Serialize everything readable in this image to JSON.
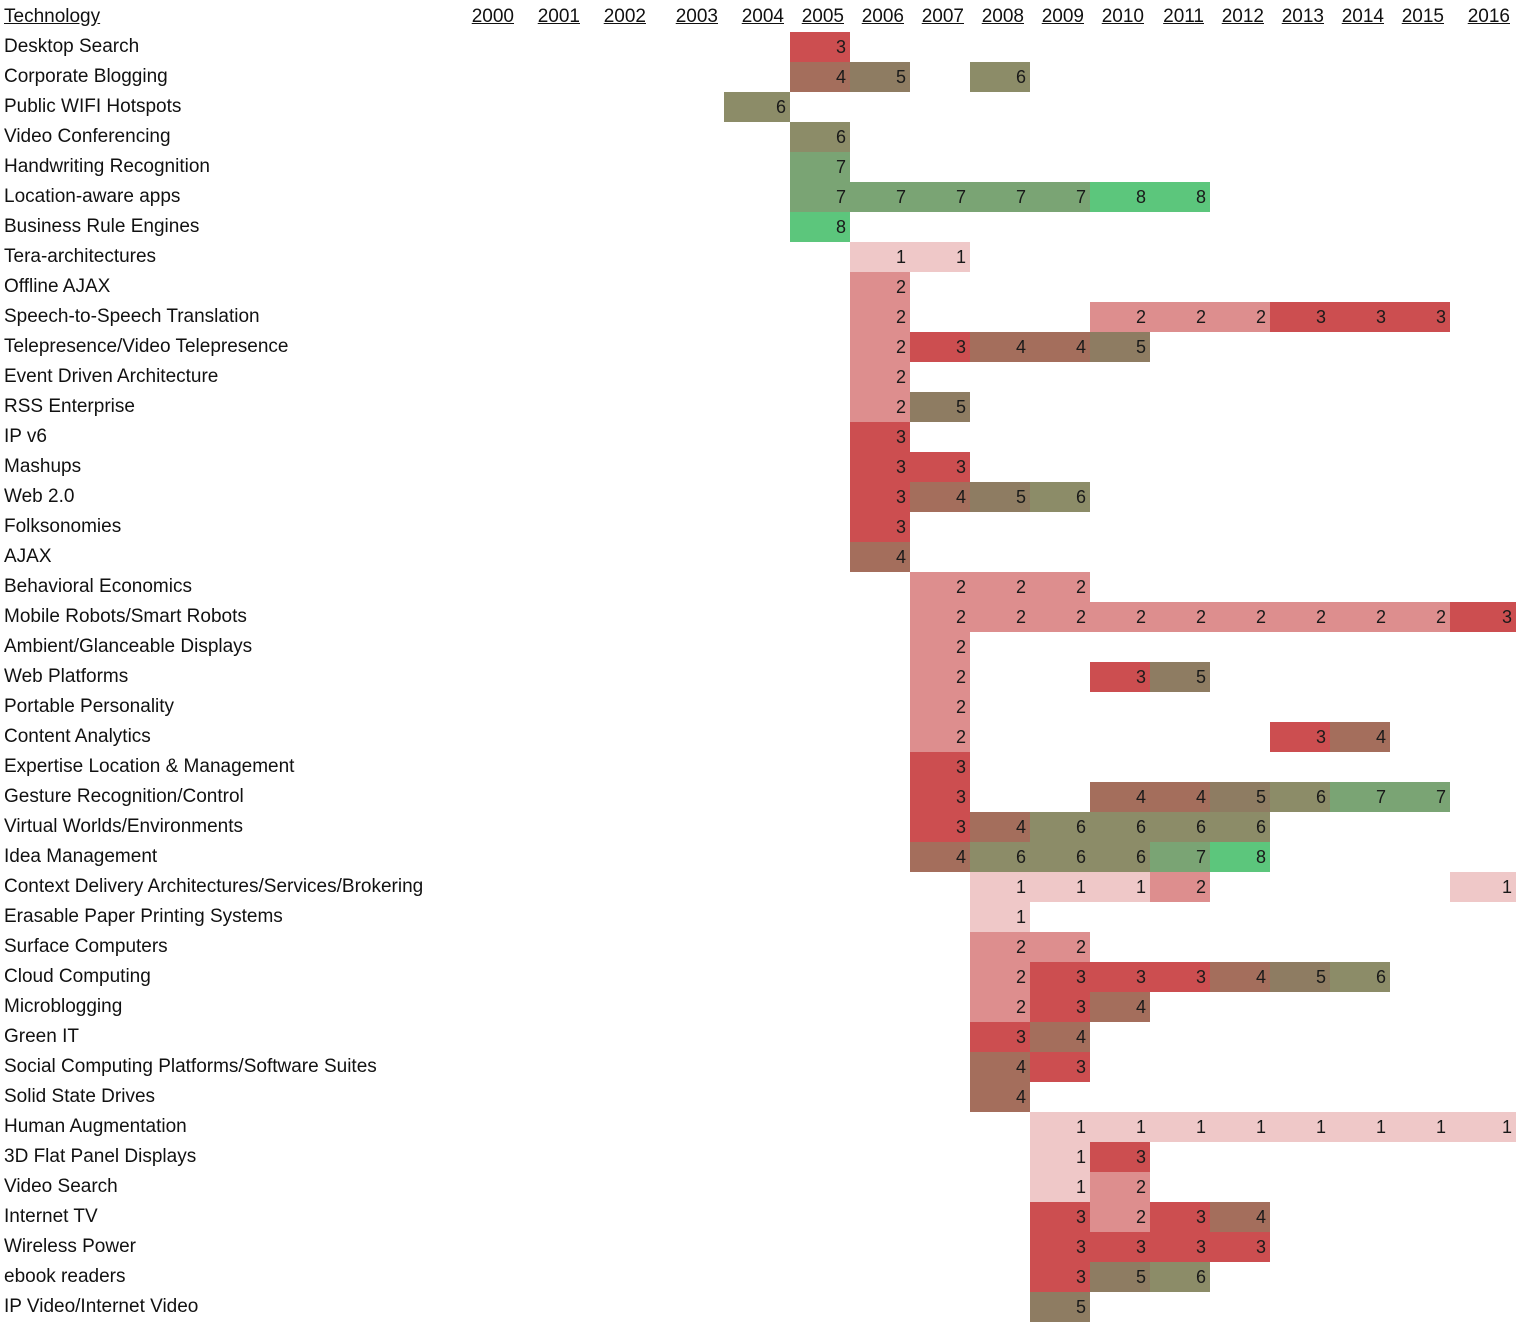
{
  "chart_data": {
    "type": "heatmap",
    "title": "",
    "corner_header": "Technology",
    "years": [
      "2000",
      "2001",
      "2002",
      "2003",
      "2004",
      "2005",
      "2006",
      "2007",
      "2008",
      "2009",
      "2010",
      "2011",
      "2012",
      "2013",
      "2014",
      "2015",
      "2016"
    ],
    "value_range": [
      1,
      8
    ],
    "color_scale": {
      "1": "#efc8c8",
      "2": "#dd8e8e",
      "3": "#cc4e50",
      "4": "#a46e5c",
      "5": "#8e7c62",
      "6": "#8c8c68",
      "7": "#7aa474",
      "8": "#5cc67c"
    },
    "rows": [
      {
        "label": "Desktop Search",
        "values": {
          "2005": 3
        }
      },
      {
        "label": "Corporate Blogging",
        "values": {
          "2005": 4,
          "2006": 5,
          "2008": 6
        }
      },
      {
        "label": "Public WIFI Hotspots",
        "values": {
          "2004": 6
        }
      },
      {
        "label": "Video Conferencing",
        "values": {
          "2005": 6
        }
      },
      {
        "label": "Handwriting Recognition",
        "values": {
          "2005": 7
        }
      },
      {
        "label": "Location-aware apps",
        "values": {
          "2005": 7,
          "2006": 7,
          "2007": 7,
          "2008": 7,
          "2009": 7,
          "2010": 8,
          "2011": 8
        }
      },
      {
        "label": "Business Rule Engines",
        "values": {
          "2005": 8
        }
      },
      {
        "label": "Tera-architectures",
        "values": {
          "2006": 1,
          "2007": 1
        }
      },
      {
        "label": "Offline AJAX",
        "values": {
          "2006": 2
        }
      },
      {
        "label": "Speech-to-Speech Translation",
        "values": {
          "2006": 2,
          "2010": 2,
          "2011": 2,
          "2012": 2,
          "2013": 3,
          "2014": 3,
          "2015": 3
        }
      },
      {
        "label": "Telepresence/Video Telepresence",
        "values": {
          "2006": 2,
          "2007": 3,
          "2008": 4,
          "2009": 4,
          "2010": 5
        }
      },
      {
        "label": "Event Driven Architecture",
        "values": {
          "2006": 2
        }
      },
      {
        "label": "RSS Enterprise",
        "values": {
          "2006": 2,
          "2007": 5
        }
      },
      {
        "label": "IP v6",
        "values": {
          "2006": 3
        }
      },
      {
        "label": "Mashups",
        "values": {
          "2006": 3,
          "2007": 3
        }
      },
      {
        "label": "Web 2.0",
        "values": {
          "2006": 3,
          "2007": 4,
          "2008": 5,
          "2009": 6
        }
      },
      {
        "label": "Folksonomies",
        "values": {
          "2006": 3
        }
      },
      {
        "label": "AJAX",
        "values": {
          "2006": 4
        }
      },
      {
        "label": "Behavioral Economics",
        "values": {
          "2007": 2,
          "2008": 2,
          "2009": 2
        }
      },
      {
        "label": "Mobile Robots/Smart Robots",
        "values": {
          "2007": 2,
          "2008": 2,
          "2009": 2,
          "2010": 2,
          "2011": 2,
          "2012": 2,
          "2013": 2,
          "2014": 2,
          "2015": 2,
          "2016": 3
        }
      },
      {
        "label": "Ambient/Glanceable Displays",
        "values": {
          "2007": 2
        }
      },
      {
        "label": "Web Platforms",
        "values": {
          "2007": 2,
          "2010": 3,
          "2011": 5
        }
      },
      {
        "label": "Portable Personality",
        "values": {
          "2007": 2
        }
      },
      {
        "label": "Content Analytics",
        "values": {
          "2007": 2,
          "2013": 3,
          "2014": 4
        }
      },
      {
        "label": "Expertise Location & Management",
        "values": {
          "2007": 3
        }
      },
      {
        "label": "Gesture Recognition/Control",
        "values": {
          "2007": 3,
          "2010": 4,
          "2011": 4,
          "2012": 5,
          "2013": 6,
          "2014": 7,
          "2015": 7
        }
      },
      {
        "label": "Virtual Worlds/Environments",
        "values": {
          "2007": 3,
          "2008": 4,
          "2009": 6,
          "2010": 6,
          "2011": 6,
          "2012": 6
        }
      },
      {
        "label": "Idea Management",
        "values": {
          "2007": 4,
          "2008": 6,
          "2009": 6,
          "2010": 6,
          "2011": 7,
          "2012": 8
        }
      },
      {
        "label": "Context Delivery Architectures/Services/Brokering",
        "values": {
          "2008": 1,
          "2009": 1,
          "2010": 1,
          "2011": 2,
          "2016": 1
        }
      },
      {
        "label": "Erasable Paper Printing Systems",
        "values": {
          "2008": 1
        }
      },
      {
        "label": "Surface Computers",
        "values": {
          "2008": 2,
          "2009": 2
        }
      },
      {
        "label": "Cloud Computing",
        "values": {
          "2008": 2,
          "2009": 3,
          "2010": 3,
          "2011": 3,
          "2012": 4,
          "2013": 5,
          "2014": 6
        }
      },
      {
        "label": "Microblogging",
        "values": {
          "2008": 2,
          "2009": 3,
          "2010": 4
        }
      },
      {
        "label": "Green IT",
        "values": {
          "2008": 3,
          "2009": 4
        }
      },
      {
        "label": "Social Computing Platforms/Software Suites",
        "values": {
          "2008": 4,
          "2009": 3
        }
      },
      {
        "label": "Solid State Drives",
        "values": {
          "2008": 4
        }
      },
      {
        "label": "Human Augmentation",
        "values": {
          "2009": 1,
          "2010": 1,
          "2011": 1,
          "2012": 1,
          "2013": 1,
          "2014": 1,
          "2015": 1,
          "2016": 1
        }
      },
      {
        "label": "3D Flat Panel Displays",
        "values": {
          "2009": 1,
          "2010": 3
        }
      },
      {
        "label": "Video Search",
        "values": {
          "2009": 1,
          "2010": 2
        }
      },
      {
        "label": "Internet TV",
        "values": {
          "2009": 3,
          "2010": 2,
          "2011": 3,
          "2012": 4
        }
      },
      {
        "label": "Wireless Power",
        "values": {
          "2009": 3,
          "2010": 3,
          "2011": 3,
          "2012": 3
        }
      },
      {
        "label": "ebook readers",
        "values": {
          "2009": 3,
          "2010": 5,
          "2011": 6
        }
      },
      {
        "label": "IP Video/Internet Video",
        "values": {
          "2009": 5
        }
      }
    ]
  }
}
